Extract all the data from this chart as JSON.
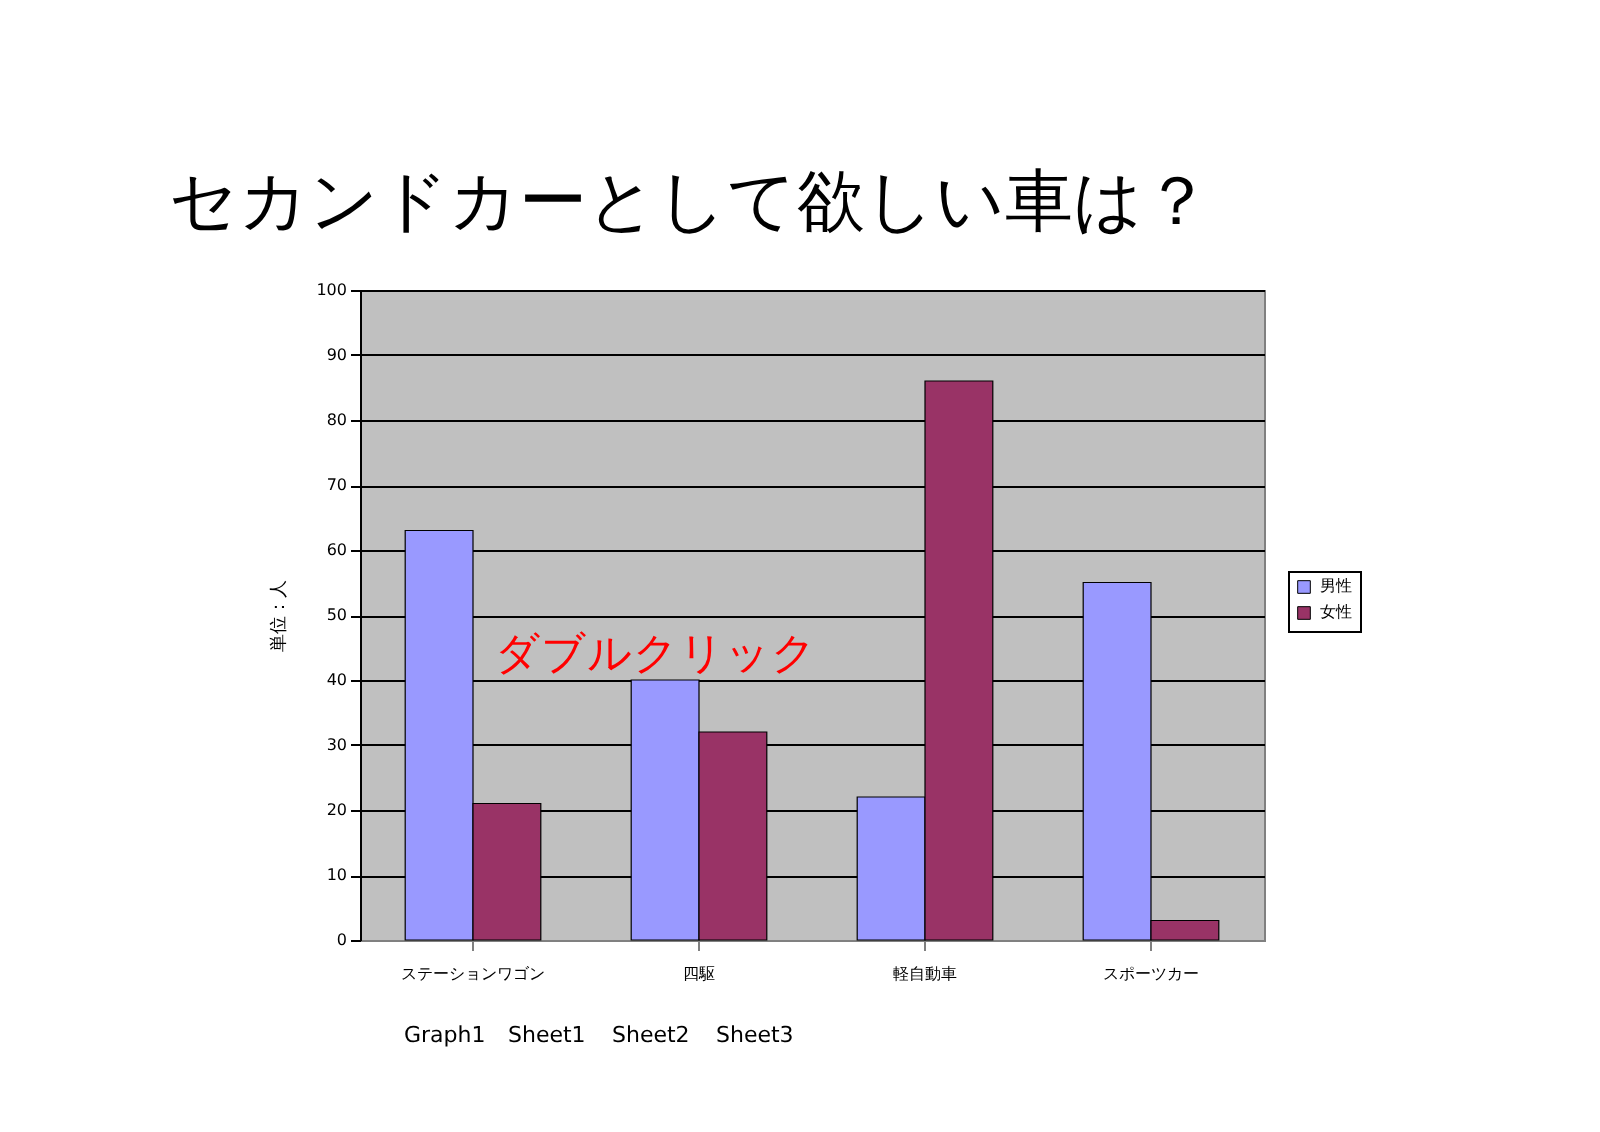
{
  "chart_data": {
    "type": "bar",
    "title": "セカンドカーとして欲しい車は？",
    "ylabel": "単位：人",
    "categories": [
      "ステーションワゴン",
      "四駆",
      "軽自動車",
      "スポーツカー"
    ],
    "series": [
      {
        "name": "男性",
        "color": "#9999ff",
        "values": [
          63,
          40,
          22,
          55
        ]
      },
      {
        "name": "女性",
        "color": "#993366",
        "values": [
          21,
          32,
          86,
          3
        ]
      }
    ],
    "ylim": [
      0,
      100
    ],
    "yticks": [
      0,
      10,
      20,
      30,
      40,
      50,
      60,
      70,
      80,
      90,
      100
    ],
    "grid": "y",
    "legend": "right",
    "annotations": [
      "ダブルクリック",
      "Graph1",
      "Sheet1",
      "Sheet2",
      "Sheet3"
    ]
  }
}
